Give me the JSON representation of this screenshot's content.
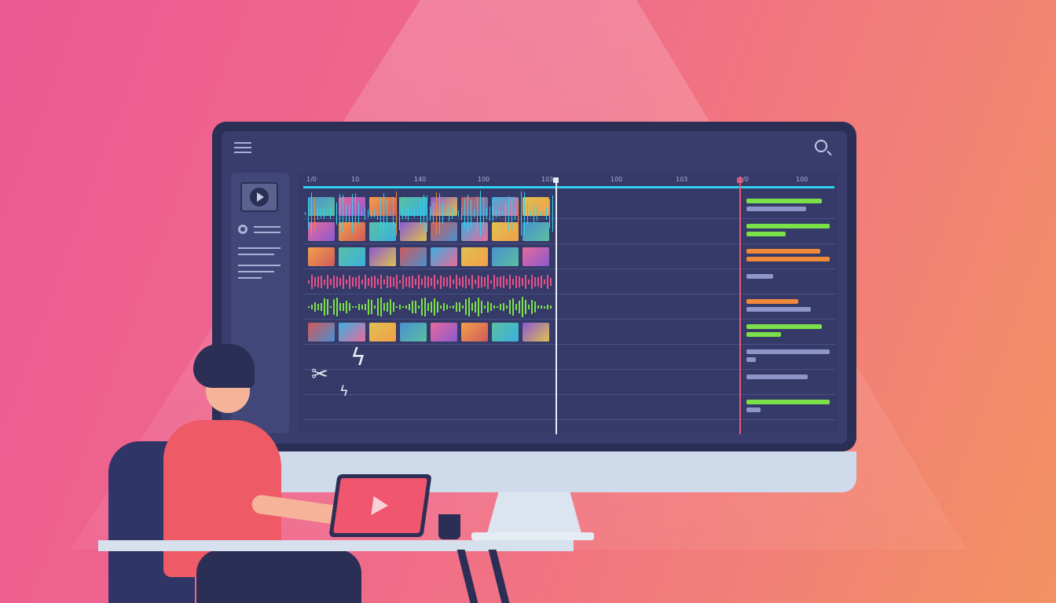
{
  "ruler": {
    "ticks": [
      "1/0",
      "10",
      "140",
      "100",
      "103",
      "100",
      "103",
      "1/0",
      "100"
    ]
  },
  "icons": {
    "menu": "menu-icon",
    "search": "search-icon",
    "play": "play-icon",
    "scissors": "scissors-icon",
    "lightning": "lightning-icon"
  },
  "colors": {
    "cyan": "#2fd3f0",
    "green": "#7be04a",
    "orange": "#f08a3a",
    "gray": "#8e95c8",
    "pink": "#e8508a",
    "playhead_red": "#e05a7a"
  },
  "tracks": [
    {
      "type": "video",
      "bars": [
        "green",
        "gray"
      ]
    },
    {
      "type": "video",
      "bars": [
        "green",
        "green"
      ]
    },
    {
      "type": "video",
      "bars": [
        "orange",
        "orange"
      ]
    },
    {
      "type": "audio-pink",
      "bars": [
        "gray"
      ]
    },
    {
      "type": "audio-green",
      "bars": [
        "orange",
        "gray"
      ]
    },
    {
      "type": "video",
      "bars": [
        "green",
        "green"
      ]
    },
    {
      "type": "empty",
      "bars": [
        "gray",
        "gray"
      ]
    },
    {
      "type": "empty",
      "bars": [
        "gray"
      ]
    },
    {
      "type": "empty",
      "bars": [
        "green",
        "gray"
      ]
    }
  ]
}
